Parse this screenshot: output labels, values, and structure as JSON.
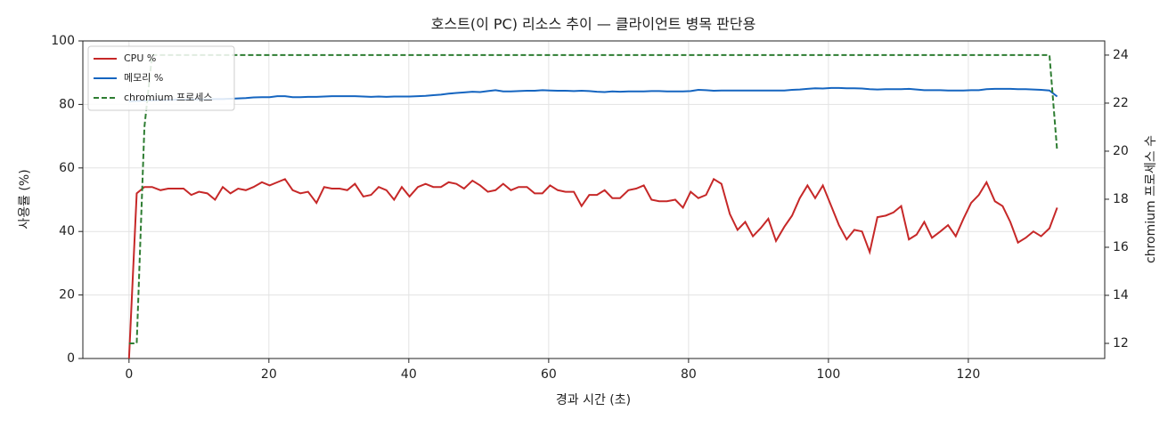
{
  "chart_data": {
    "type": "line",
    "title": "호스트(이 PC) 리소스 추이 — 클라이언트 병목 판단용",
    "x_label": "경과 시간 (초)",
    "y_label": "사용률 (%)",
    "y2_label": "chromium 프로세스 수",
    "x": [
      0,
      1.1,
      2.2,
      3.3,
      4.5,
      5.6,
      6.7,
      7.8,
      8.9,
      10,
      11.2,
      12.3,
      13.4,
      14.5,
      15.6,
      16.7,
      17.8,
      19,
      20.1,
      21.2,
      22.3,
      23.4,
      24.5,
      25.6,
      26.8,
      27.9,
      29,
      30.1,
      31.2,
      32.3,
      33.5,
      34.6,
      35.7,
      36.8,
      37.9,
      39,
      40.1,
      41.3,
      42.4,
      43.5,
      44.6,
      45.7,
      46.8,
      47.9,
      49.1,
      50.2,
      51.3,
      52.4,
      53.5,
      54.6,
      55.7,
      56.9,
      58,
      59.1,
      60.2,
      61.3,
      62.4,
      63.6,
      64.7,
      65.8,
      66.9,
      68,
      69.1,
      70.2,
      71.4,
      72.5,
      73.6,
      74.7,
      75.8,
      76.9,
      78.1,
      79.2,
      80.3,
      81.4,
      82.5,
      83.6,
      84.7,
      85.9,
      87,
      88.1,
      89.2,
      90.3,
      91.4,
      92.5,
      93.7,
      94.8,
      95.9,
      97,
      98.1,
      99.2,
      100.4,
      101.5,
      102.6,
      103.7,
      104.8,
      105.9,
      107,
      108.2,
      109.3,
      110.4,
      111.5,
      112.6,
      113.7,
      114.8,
      116,
      117.1,
      118.2,
      119.3,
      120.4,
      121.5,
      122.6,
      123.8,
      124.9,
      126,
      127.1,
      128.2,
      129.3,
      130.4,
      131.6,
      132.7
    ],
    "series": [
      {
        "name": "CPU %",
        "color": "#c62828",
        "linestyle": "solid",
        "values": [
          0,
          52,
          54,
          54,
          53,
          53.5,
          53.5,
          53.5,
          51.5,
          52.5,
          52,
          50,
          54,
          52,
          53.5,
          53,
          54,
          55.5,
          54.5,
          55.5,
          56.5,
          53,
          52,
          52.5,
          49,
          54,
          53.5,
          53.5,
          53,
          55,
          51,
          51.5,
          54,
          53,
          50,
          54,
          51,
          54,
          55,
          54,
          54,
          55.5,
          55,
          53.5,
          56,
          54.5,
          52.5,
          53,
          55,
          53,
          54,
          54,
          52,
          52,
          54.5,
          53,
          52.5,
          52.5,
          48,
          51.5,
          51.5,
          53,
          50.5,
          50.5,
          53,
          53.5,
          54.5,
          50,
          49.5,
          49.5,
          50,
          47.5,
          52.5,
          50.5,
          51.5,
          56.5,
          55,
          45.5,
          40.5,
          43,
          38.5,
          41,
          44,
          37,
          41.5,
          45,
          50.5,
          54.5,
          50.5,
          54.5,
          48,
          42,
          37.5,
          40.5,
          40,
          33.5,
          44.5,
          45,
          46,
          48,
          37.5,
          39,
          43,
          38,
          40,
          42,
          38.5,
          44,
          49,
          51.5,
          55.5,
          49.5,
          48,
          43,
          36.5,
          38,
          40,
          38.5,
          41,
          47.5
        ]
      },
      {
        "name": "메모리 %",
        "color": "#1565c0",
        "linestyle": "solid",
        "values": [
          81,
          81.1,
          81.2,
          81.3,
          81.4,
          81.4,
          81.5,
          81.5,
          81.5,
          81.6,
          81.6,
          81.7,
          81.7,
          81.8,
          81.9,
          82,
          82.2,
          82.3,
          82.3,
          82.6,
          82.6,
          82.3,
          82.3,
          82.4,
          82.4,
          82.5,
          82.6,
          82.6,
          82.6,
          82.6,
          82.5,
          82.4,
          82.5,
          82.4,
          82.5,
          82.5,
          82.5,
          82.6,
          82.7,
          82.9,
          83.1,
          83.4,
          83.6,
          83.8,
          84,
          83.9,
          84.2,
          84.5,
          84.1,
          84.1,
          84.2,
          84.3,
          84.3,
          84.5,
          84.4,
          84.3,
          84.3,
          84.2,
          84.3,
          84.2,
          84,
          83.9,
          84.1,
          84,
          84.1,
          84.1,
          84.1,
          84.2,
          84.2,
          84.1,
          84.1,
          84.1,
          84.2,
          84.6,
          84.5,
          84.3,
          84.4,
          84.4,
          84.4,
          84.4,
          84.4,
          84.4,
          84.4,
          84.4,
          84.4,
          84.6,
          84.7,
          84.9,
          85.1,
          85,
          85.2,
          85.2,
          85.1,
          85.1,
          85,
          84.8,
          84.7,
          84.8,
          84.8,
          84.8,
          84.9,
          84.7,
          84.5,
          84.5,
          84.5,
          84.4,
          84.4,
          84.4,
          84.5,
          84.5,
          84.8,
          84.9,
          84.9,
          84.9,
          84.8,
          84.8,
          84.7,
          84.6,
          84.4,
          82.5
        ]
      },
      {
        "name": "chromium 프로세스",
        "color": "#2e7d32",
        "linestyle": "dashed",
        "axis": "y2",
        "values": [
          12,
          12,
          21,
          24,
          24,
          24,
          24,
          24,
          24,
          24,
          24,
          24,
          24,
          24,
          24,
          24,
          24,
          24,
          24,
          24,
          24,
          24,
          24,
          24,
          24,
          24,
          24,
          24,
          24,
          24,
          24,
          24,
          24,
          24,
          24,
          24,
          24,
          24,
          24,
          24,
          24,
          24,
          24,
          24,
          24,
          24,
          24,
          24,
          24,
          24,
          24,
          24,
          24,
          24,
          24,
          24,
          24,
          24,
          24,
          24,
          24,
          24,
          24,
          24,
          24,
          24,
          24,
          24,
          24,
          24,
          24,
          24,
          24,
          24,
          24,
          24,
          24,
          24,
          24,
          24,
          24,
          24,
          24,
          24,
          24,
          24,
          24,
          24,
          24,
          24,
          24,
          24,
          24,
          24,
          24,
          24,
          24,
          24,
          24,
          24,
          24,
          24,
          24,
          24,
          24,
          24,
          24,
          24,
          24,
          24,
          24,
          24,
          24,
          24,
          24,
          24,
          24,
          24,
          24,
          20
        ]
      }
    ],
    "xlim": [
      -6.6,
      139.5
    ],
    "xticks": [
      0,
      20,
      40,
      60,
      80,
      100,
      120
    ],
    "ylim": [
      0,
      100
    ],
    "yticks": [
      0,
      20,
      40,
      60,
      80,
      100
    ],
    "y2lim": [
      11.37,
      24.59
    ],
    "y2ticks": [
      12,
      14,
      16,
      18,
      20,
      22,
      24
    ],
    "grid": true,
    "legend": "upper-left"
  }
}
